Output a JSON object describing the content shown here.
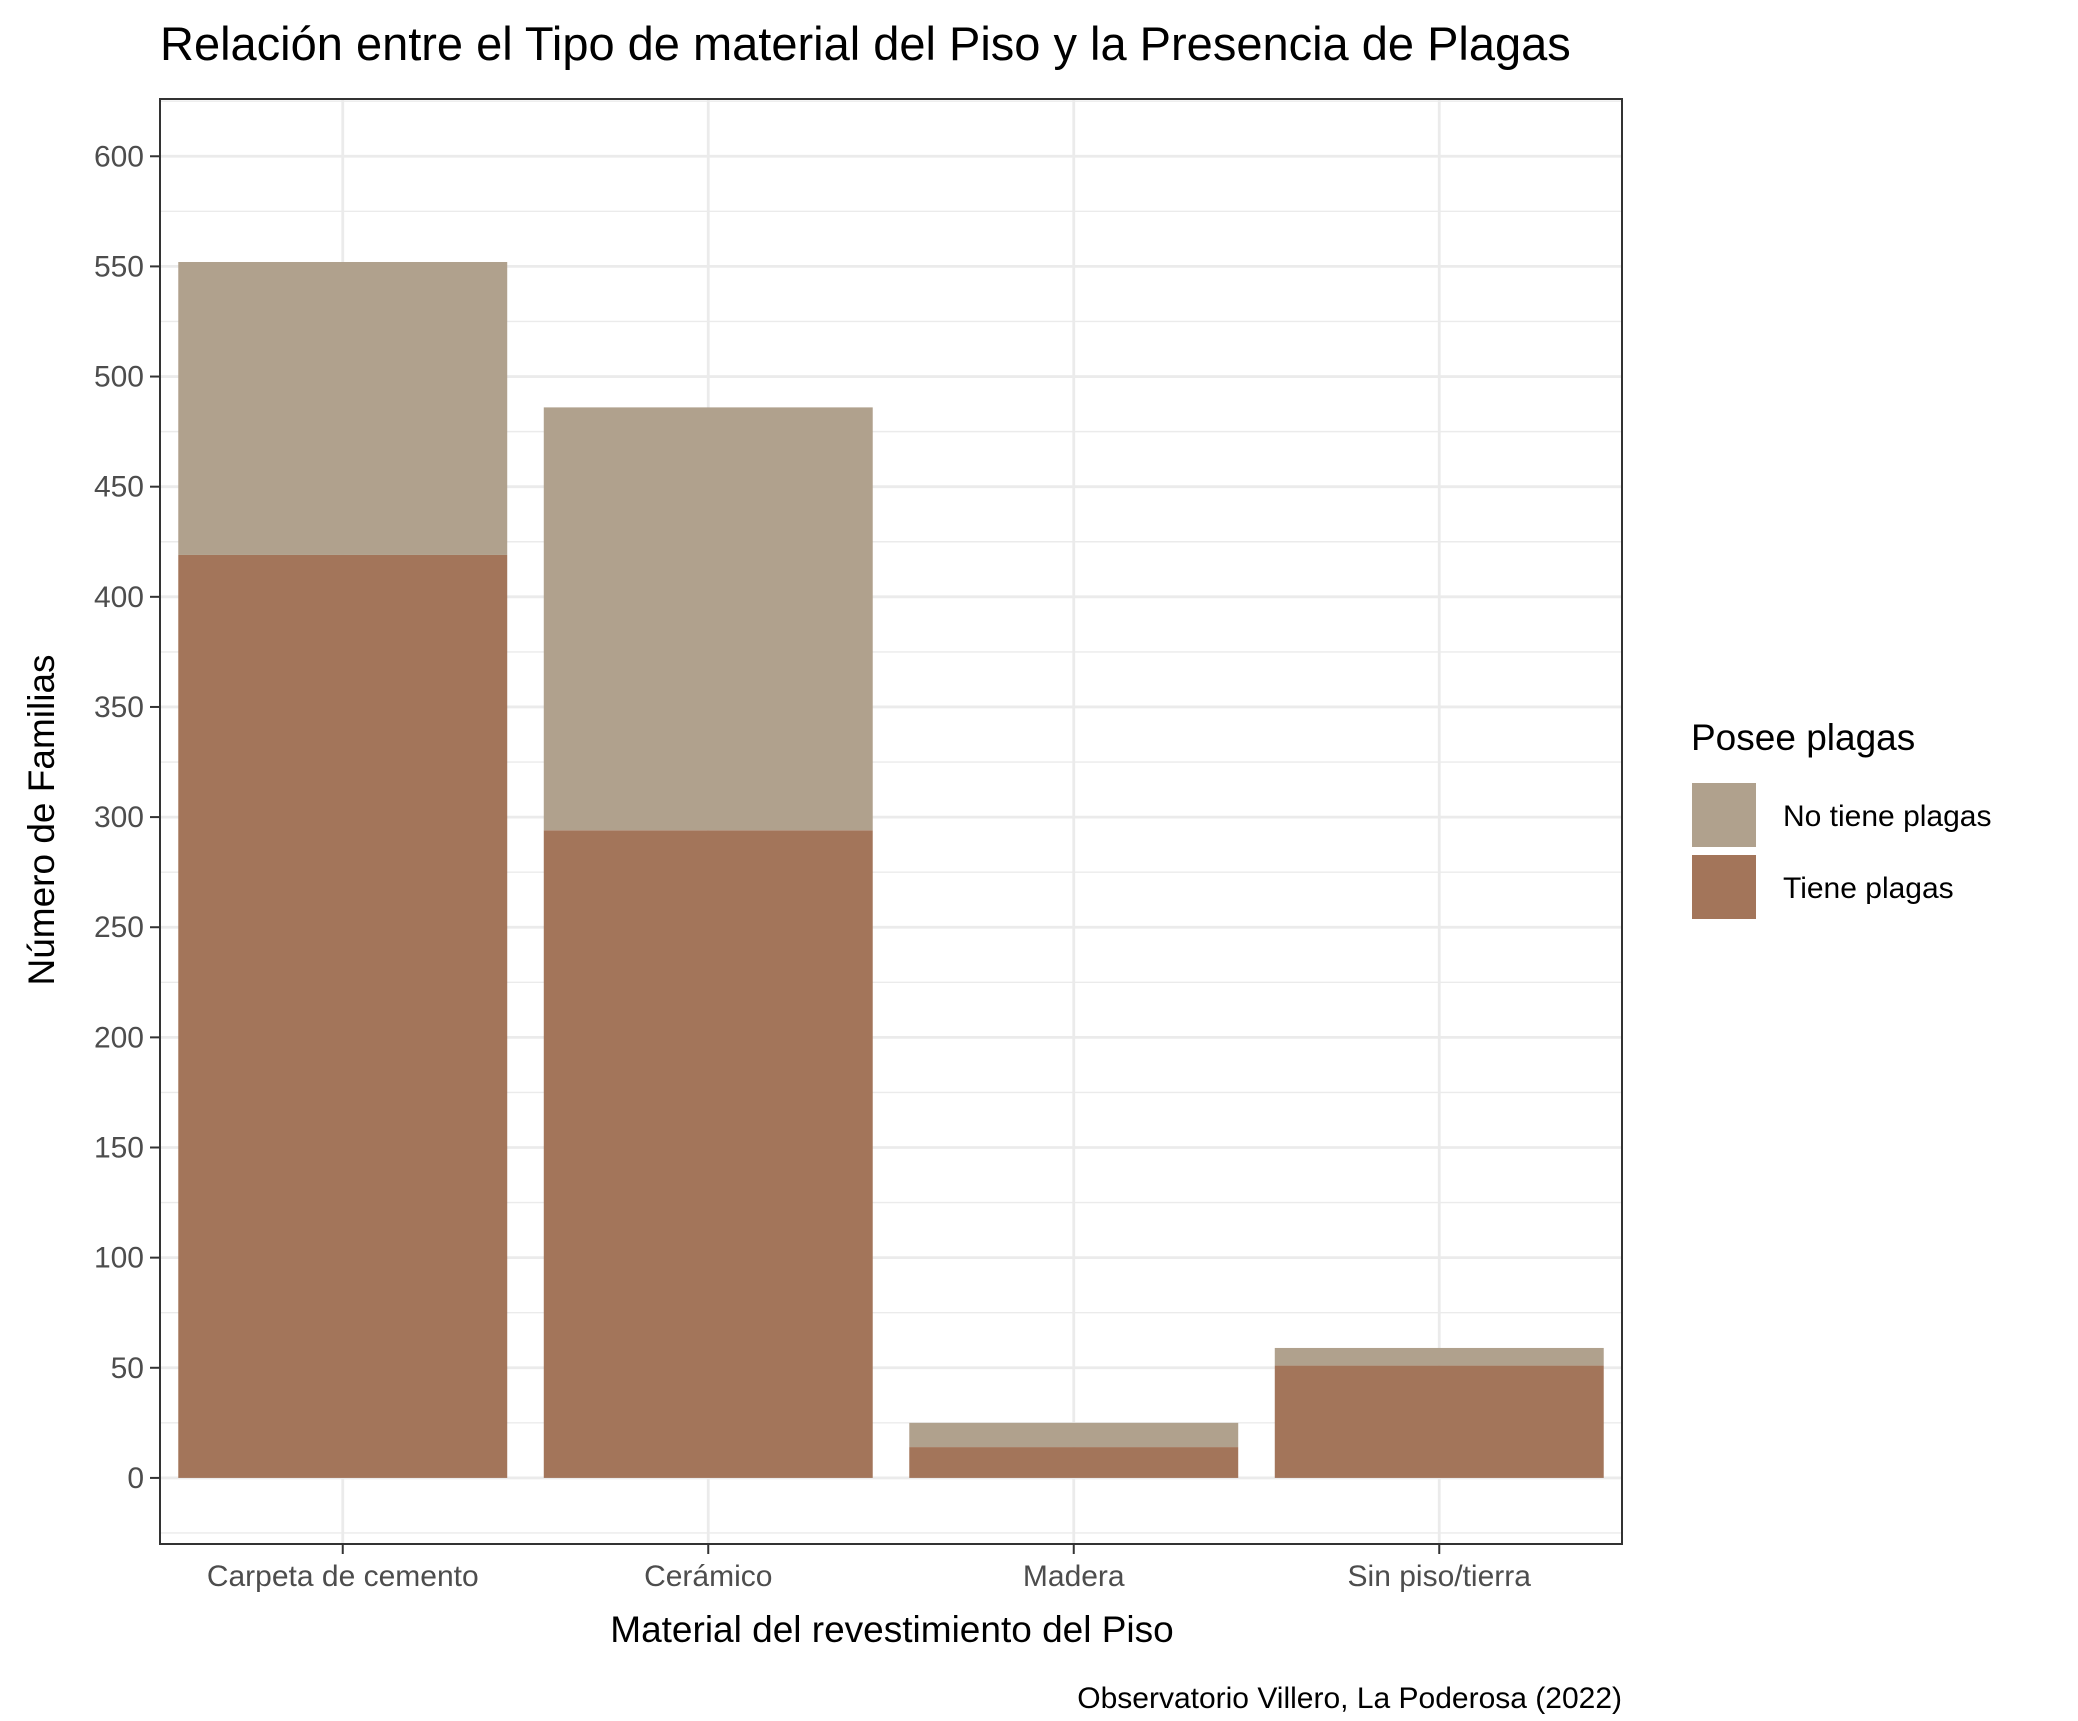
{
  "chart_data": {
    "type": "bar",
    "stacked": true,
    "title": "Relación entre el Tipo de material del Piso y la Presencia de Plagas",
    "xlabel": "Material del revestimiento del Piso",
    "ylabel": "Número de Familias",
    "caption": "Observatorio Villero, La Poderosa (2022)",
    "categories": [
      "Carpeta de cemento",
      "Cerámico",
      "Madera",
      "Sin piso/tierra"
    ],
    "series": [
      {
        "name": "No tiene plagas",
        "color": "#b0a18d",
        "values": [
          133,
          192,
          11,
          8
        ]
      },
      {
        "name": "Tiene plagas",
        "color": "#a3755a",
        "values": [
          419,
          294,
          14,
          51
        ]
      }
    ],
    "ylim": [
      -30,
      626
    ],
    "yticks": [
      0,
      50,
      100,
      150,
      200,
      250,
      300,
      350,
      400,
      450,
      500,
      550,
      600
    ],
    "grid": true,
    "legend": {
      "title": "Posee plagas",
      "placement": "right"
    }
  }
}
